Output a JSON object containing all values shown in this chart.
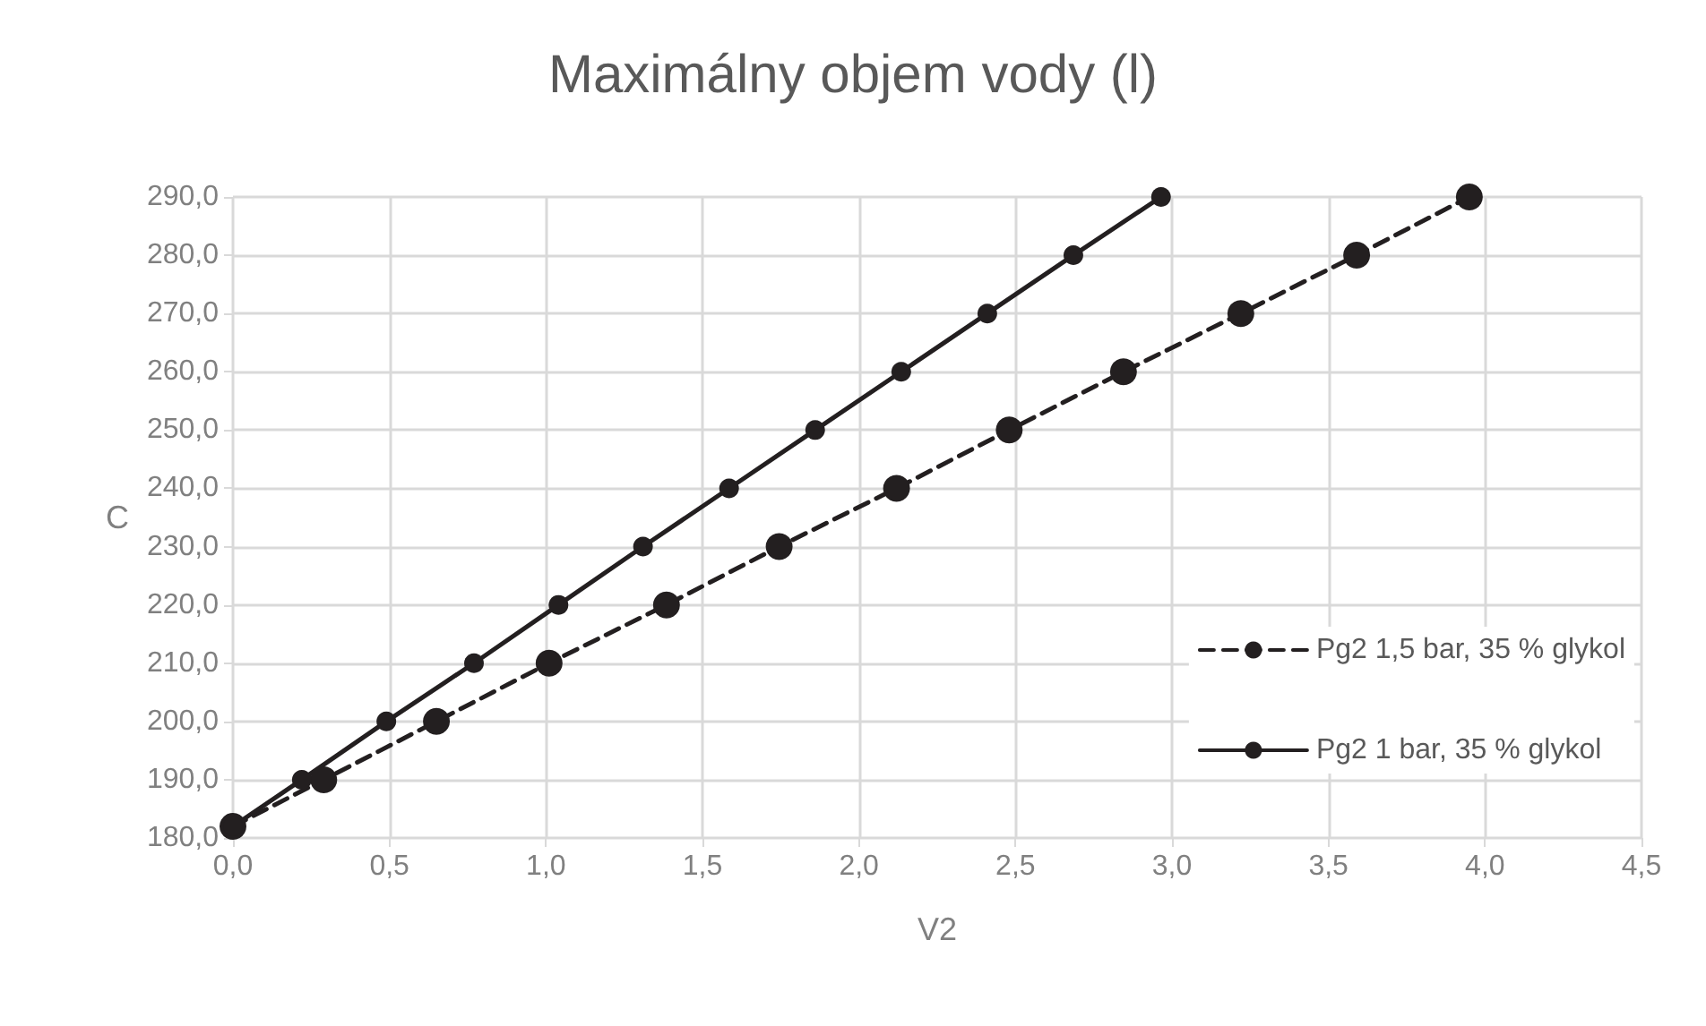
{
  "chart_data": {
    "type": "line",
    "title": "Maximálny objem vody (l)",
    "xlabel": "V2",
    "ylabel": "C",
    "xlim": [
      0,
      4.5
    ],
    "ylim": [
      180,
      290
    ],
    "xticks": [
      {
        "value": 0,
        "label": "0,0"
      },
      {
        "value": 0.5,
        "label": "0,5"
      },
      {
        "value": 1,
        "label": "1,0"
      },
      {
        "value": 1.5,
        "label": "1,5"
      },
      {
        "value": 2,
        "label": "2,0"
      },
      {
        "value": 2.5,
        "label": "2,5"
      },
      {
        "value": 3,
        "label": "3,0"
      },
      {
        "value": 3.5,
        "label": "3,5"
      },
      {
        "value": 4,
        "label": "4,0"
      },
      {
        "value": 4.5,
        "label": "4,5"
      }
    ],
    "yticks": [
      {
        "value": 180,
        "label": "180,0"
      },
      {
        "value": 190,
        "label": "190,0"
      },
      {
        "value": 200,
        "label": "200,0"
      },
      {
        "value": 210,
        "label": "210,0"
      },
      {
        "value": 220,
        "label": "220,0"
      },
      {
        "value": 230,
        "label": "230,0"
      },
      {
        "value": 240,
        "label": "240,0"
      },
      {
        "value": 250,
        "label": "250,0"
      },
      {
        "value": 260,
        "label": "260,0"
      },
      {
        "value": 270,
        "label": "270,0"
      },
      {
        "value": 280,
        "label": "280,0"
      },
      {
        "value": 290,
        "label": "290,0"
      }
    ],
    "grid": true,
    "legend": "right",
    "marker": "circle",
    "series": [
      {
        "name": "Pg2 1,5 bar, 35 % glykol",
        "color": "#231f20",
        "line_style": "dashed",
        "x": [
          0,
          0.29,
          0.65,
          1.01,
          1.385,
          1.745,
          2.12,
          2.48,
          2.845,
          3.22,
          3.59,
          3.95
        ],
        "values": [
          182,
          190,
          200,
          210,
          220,
          230,
          240,
          250,
          260,
          270,
          280,
          290
        ]
      },
      {
        "name": "Pg2 1 bar, 35 % glykol",
        "color": "#231f20",
        "line_style": "solid",
        "x": [
          0,
          0.22,
          0.49,
          0.77,
          1.04,
          1.31,
          1.585,
          1.86,
          2.135,
          2.41,
          2.685,
          2.965
        ],
        "values": [
          182,
          190,
          200,
          210,
          220,
          230,
          240,
          250,
          260,
          270,
          280,
          290
        ]
      }
    ]
  }
}
